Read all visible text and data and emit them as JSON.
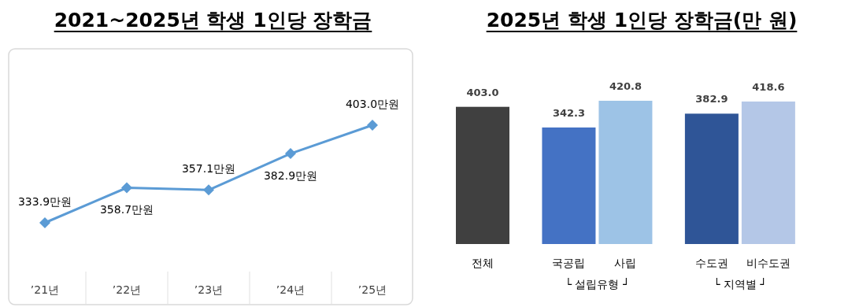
{
  "chart_data": [
    {
      "type": "line",
      "title": "2021~2025년 학생 1인당 장학금",
      "categories": [
        "’21년",
        "’22년",
        "’23년",
        "’24년",
        "’25년"
      ],
      "series": [
        {
          "color": "#5b9bd5",
          "values": [
            333.9,
            358.7,
            357.1,
            382.9,
            403.0
          ],
          "value_labels": [
            "333.9만원",
            "358.7만원",
            "357.1만원",
            "382.9만원",
            "403.0만원"
          ]
        }
      ],
      "marker": "diamond"
    },
    {
      "type": "bar",
      "title": "2025년 학생 1인당 장학금(만 원)",
      "categories": [
        "전체",
        "국공립",
        "사립",
        "수도권",
        "비수도권"
      ],
      "values": [
        403.0,
        342.3,
        420.8,
        382.9,
        418.6
      ],
      "colors": [
        "#404040",
        "#4472c4",
        "#9dc3e6",
        "#2f5597",
        "#b4c7e7"
      ],
      "value_labels": [
        "403.0",
        "342.3",
        "420.8",
        "382.9",
        "418.6"
      ],
      "annotations": [
        "└ 설립유형 ┘",
        "└ 지역별 ┘"
      ]
    }
  ]
}
